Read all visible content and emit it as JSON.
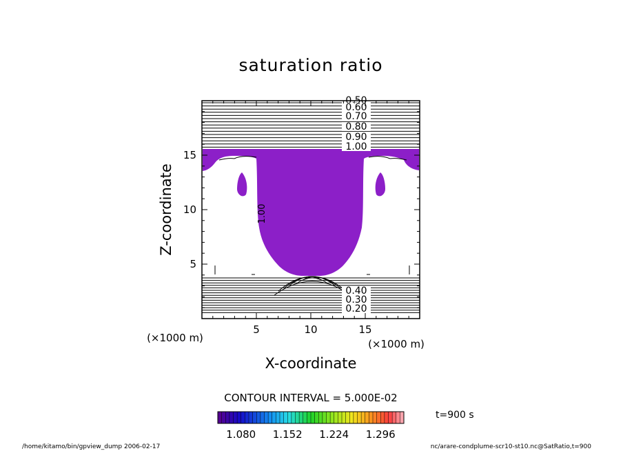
{
  "chart_data": {
    "type": "contour",
    "title": "saturation ratio",
    "xlabel": "X-coordinate",
    "ylabel": "Z-coordinate",
    "x_unit": "(×1000 m)",
    "y_unit": "(×1000 m)",
    "xlim": [
      0,
      20
    ],
    "ylim": [
      0,
      20
    ],
    "x_ticks": [
      5,
      10,
      15
    ],
    "y_ticks": [
      5,
      10,
      15
    ],
    "contour_interval": "CONTOUR INTERVAL = 5.000E-02",
    "upper_levels": [
      "0.50",
      "0.60",
      "0.70",
      "0.80",
      "0.90",
      "1.00"
    ],
    "lower_levels": [
      "0.20",
      "0.30",
      "0.40"
    ],
    "mid_label": "1.00",
    "colorbar": {
      "ticks": [
        "1.080",
        "1.152",
        "1.224",
        "1.296"
      ],
      "min": 1.044,
      "max": 1.332,
      "n_bins": 48
    },
    "time_label": "t=900 s",
    "fill_color": "#8c1fc8"
  },
  "footer": {
    "left": "/home/kitamo/bin/gpview_dump  2006-02-17",
    "right": "nc/arare-condplume-scr10-st10.nc@SatRatio,t=900"
  }
}
